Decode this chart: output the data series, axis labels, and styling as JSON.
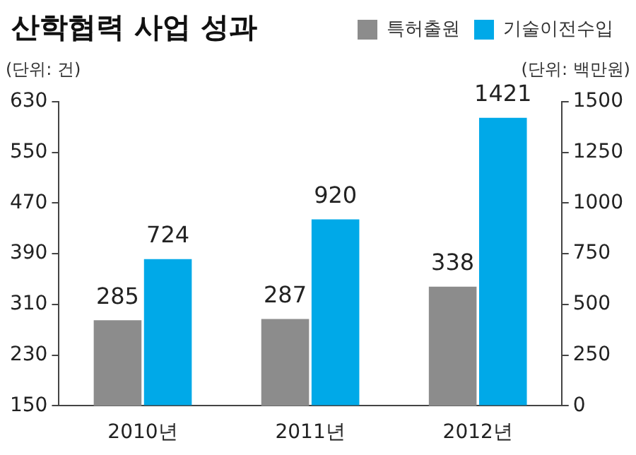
{
  "chart_data": {
    "type": "bar",
    "title": "산학협력 사업 성과",
    "ylabel": "(단위: 건)",
    "y2label": "(단위: 백만원)",
    "categories": [
      "2010년",
      "2011년",
      "2012년"
    ],
    "series": [
      {
        "name": "특허출원",
        "color": "#8c8c8c",
        "values": [
          285,
          287,
          338
        ]
      },
      {
        "name": "기술이전수입",
        "color": "#00a9e8",
        "values": [
          724,
          920,
          1421
        ],
        "axis": "y2"
      }
    ],
    "ylim": [
      150,
      630
    ],
    "yticks": [
      150,
      230,
      310,
      390,
      470,
      550,
      630
    ],
    "y2lim": [
      0,
      1500
    ],
    "y2ticks": [
      0,
      250,
      500,
      750,
      1000,
      1250,
      1500
    ],
    "data_labels": true,
    "legend": "top right",
    "grid": false
  }
}
